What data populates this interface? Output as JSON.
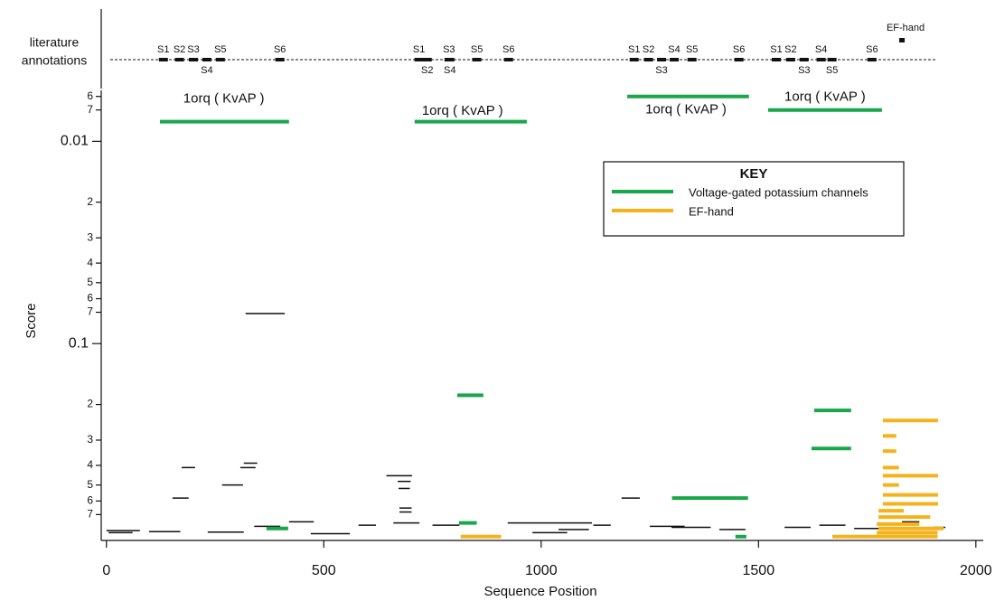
{
  "chart_data": {
    "type": "segments",
    "x_label": "Sequence Position",
    "y_label": "Score",
    "track_label": [
      "literature",
      "annotations"
    ],
    "xlim": [
      -12,
      2017
    ],
    "xticks": [
      0,
      500,
      1000,
      1500,
      2000
    ],
    "ylim": [
      0.0056,
      0.94
    ],
    "ylog": true,
    "yinvert": true,
    "yticks": [
      {
        "value": 0.006,
        "label": "6"
      },
      {
        "value": 0.007,
        "label": "7"
      },
      0.01,
      {
        "value": 0.02,
        "label": "2"
      },
      {
        "value": 0.03,
        "label": "3"
      },
      {
        "value": 0.04,
        "label": "4"
      },
      {
        "value": 0.05,
        "label": "5"
      },
      {
        "value": 0.06,
        "label": "6"
      },
      {
        "value": 0.07,
        "label": "7"
      },
      0.1,
      {
        "value": 0.2,
        "label": "2"
      },
      {
        "value": 0.3,
        "label": "3"
      },
      {
        "value": 0.4,
        "label": "4"
      },
      {
        "value": 0.5,
        "label": "5"
      },
      {
        "value": 0.6,
        "label": "6"
      },
      {
        "value": 0.7,
        "label": "7"
      }
    ],
    "legend_title": "KEY",
    "legend": "upper right",
    "series": [
      {
        "color": "#111111",
        "x_start": [
          320,
          173,
          152,
          266,
          308,
          316,
          644,
          670,
          672,
          674,
          674,
          1185,
          923,
          0,
          98,
          233,
          420,
          470,
          580,
          750,
          1040,
          1120,
          1300,
          1410,
          1560,
          1640,
          1720,
          1830,
          1900,
          5,
          340,
          660,
          980,
          1250
        ],
        "x_end": [
          410,
          204,
          189,
          314,
          343,
          347,
          703,
          700,
          698,
          702,
          702,
          1227,
          1117,
          77,
          170,
          316,
          477,
          560,
          620,
          812,
          1110,
          1160,
          1390,
          1470,
          1620,
          1700,
          1780,
          1870,
          1930,
          60,
          400,
          720,
          1060,
          1330
        ],
        "values": [
          0.071,
          0.41,
          0.58,
          0.5,
          0.41,
          0.39,
          0.45,
          0.48,
          0.52,
          0.65,
          0.68,
          0.58,
          0.77,
          0.84,
          0.85,
          0.855,
          0.76,
          0.87,
          0.79,
          0.79,
          0.83,
          0.79,
          0.81,
          0.83,
          0.81,
          0.79,
          0.82,
          0.76,
          0.81,
          0.86,
          0.8,
          0.77,
          0.86,
          0.8
        ]
      },
      {
        "name": "Voltage-gated potassium channels",
        "color": "#1aa64a",
        "x_start": [
          123,
          709,
          1198,
          1522,
          807,
          1628,
          1622,
          1301,
          811,
          368,
          1447
        ],
        "x_end": [
          420,
          967,
          1478,
          1784,
          867,
          1713,
          1713,
          1476,
          852,
          418,
          1472
        ],
        "values": [
          0.008,
          0.008,
          0.006,
          0.007,
          0.18,
          0.214,
          0.33,
          0.58,
          0.77,
          0.82,
          0.9
        ]
      },
      {
        "name": "EF-hand",
        "color": "#f5b21b",
        "x_start": [
          1786,
          1786,
          1786,
          1786,
          1786,
          1786,
          1786,
          1786,
          1776,
          1776,
          1772,
          1776,
          1772,
          1670,
          815
        ],
        "x_end": [
          1913,
          1817,
          1817,
          1823,
          1913,
          1823,
          1913,
          1913,
          1834,
          1895,
          1870,
          1926,
          1912,
          1912,
          908
        ],
        "values": [
          0.24,
          0.286,
          0.34,
          0.41,
          0.45,
          0.5,
          0.56,
          0.62,
          0.67,
          0.72,
          0.78,
          0.82,
          0.86,
          0.9,
          0.9
        ]
      }
    ],
    "annotations": [
      {
        "text": "1orq ( KvAP )",
        "x": 270,
        "y": 0.00617
      },
      {
        "text": "1orq ( KvAP )",
        "x": 819,
        "y": 0.0071
      },
      {
        "text": "1orq ( KvAP )",
        "x": 1333,
        "y": 0.007
      },
      {
        "text": "1orq ( KvAP )",
        "x": 1653,
        "y": 0.00604
      }
    ],
    "literature": [
      {
        "label": "S1",
        "x": 131
      },
      {
        "label": "S2",
        "x": 168
      },
      {
        "label": "S3",
        "x": 200
      },
      {
        "label": "S4",
        "x": 231
      },
      {
        "label": "S5",
        "x": 262
      },
      {
        "label": "S6",
        "x": 399
      },
      {
        "label": "S1",
        "x": 719
      },
      {
        "label": "S2",
        "x": 738
      },
      {
        "label": "S3",
        "x": 788
      },
      {
        "label": "S4",
        "x": 790
      },
      {
        "label": "S5",
        "x": 852
      },
      {
        "label": "S6",
        "x": 925
      },
      {
        "label": "S1",
        "x": 1214
      },
      {
        "label": "S2",
        "x": 1247
      },
      {
        "label": "S3",
        "x": 1277
      },
      {
        "label": "S4",
        "x": 1306
      },
      {
        "label": "S5",
        "x": 1347
      },
      {
        "label": "S6",
        "x": 1455
      },
      {
        "label": "S1",
        "x": 1541
      },
      {
        "label": "S2",
        "x": 1574
      },
      {
        "label": "S3",
        "x": 1605
      },
      {
        "label": "S4",
        "x": 1644
      },
      {
        "label": "S5",
        "x": 1669
      },
      {
        "label": "S6",
        "x": 1761
      },
      {
        "label": "EF-hand",
        "x": 1830
      }
    ]
  }
}
